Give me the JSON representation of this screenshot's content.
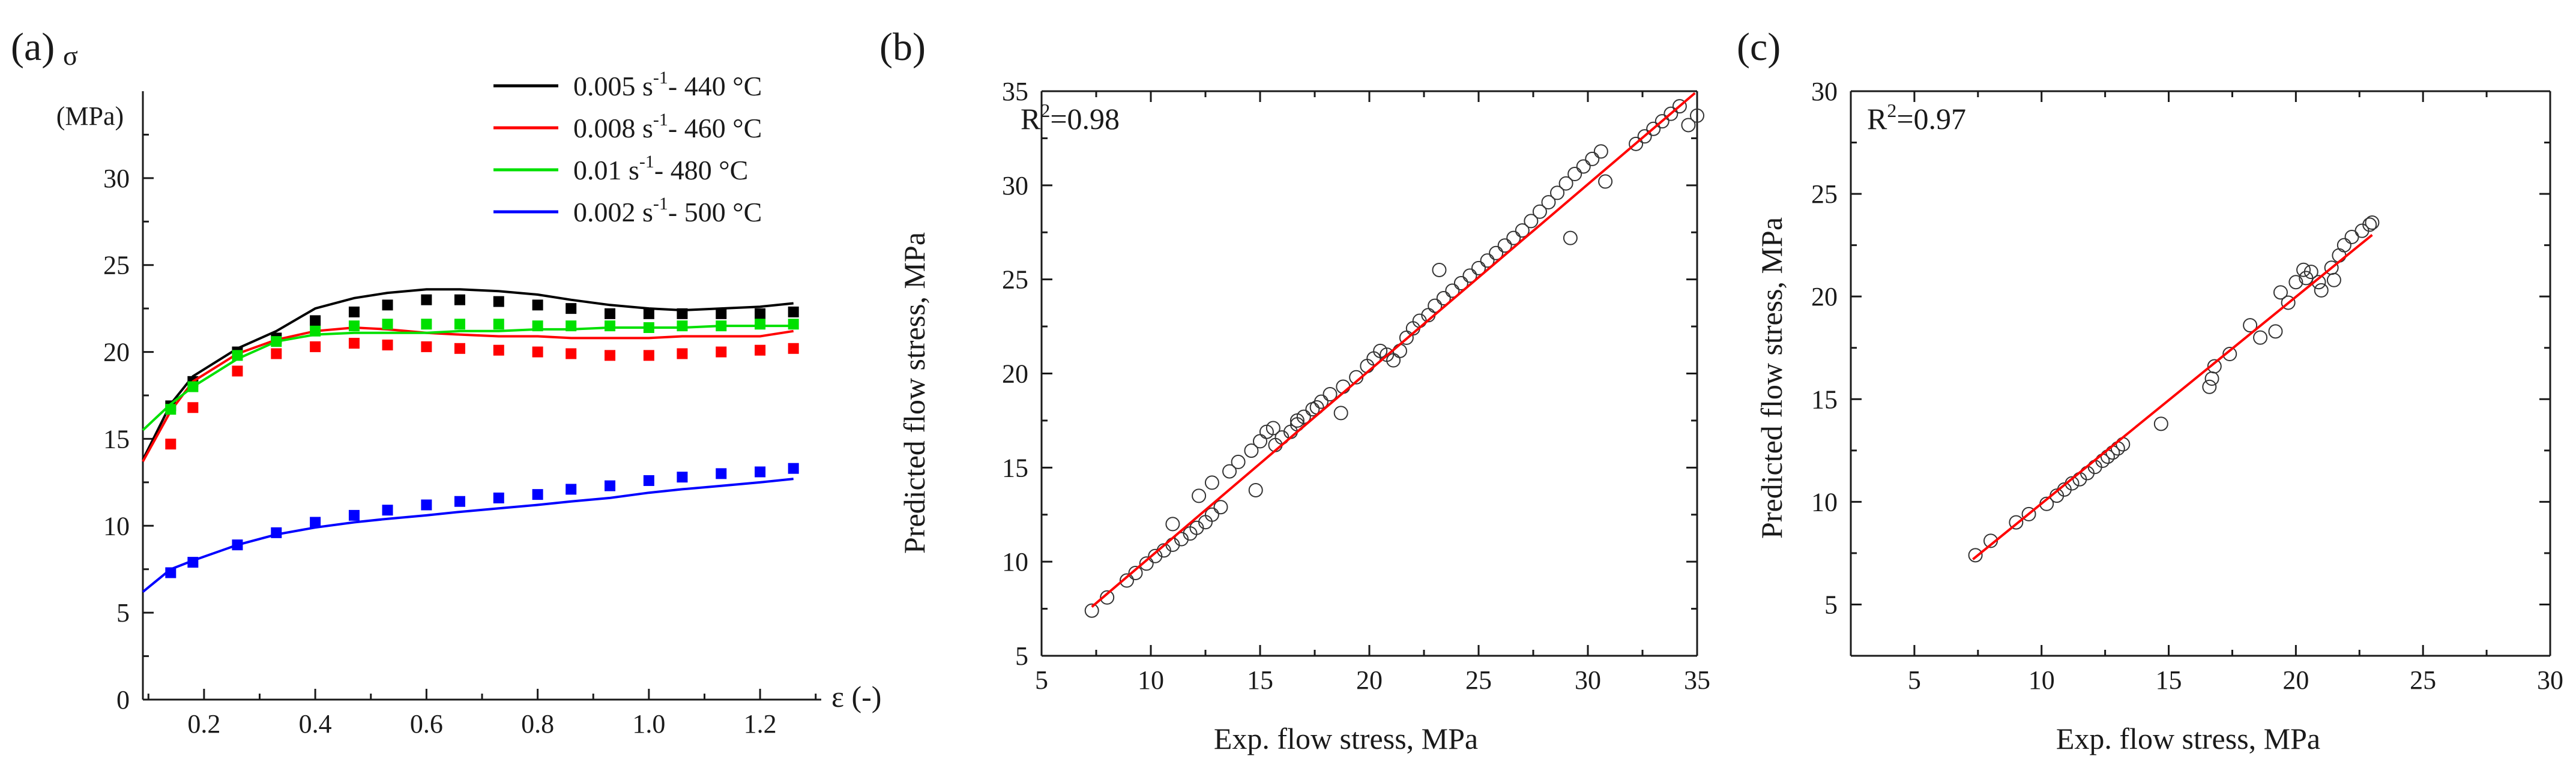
{
  "chart_data": [
    {
      "panel": "(a)",
      "type": "line",
      "title": "",
      "ylabel_symbol": "σ",
      "ylabel_unit": "(MPa)",
      "xlabel": "ε (-)",
      "xlim": [
        0.09,
        1.31
      ],
      "ylim": [
        0,
        35
      ],
      "xticks": [
        "0.2",
        "0.4",
        "0.6",
        "0.8",
        "1.0",
        "1.2"
      ],
      "xtick_values": [
        0.2,
        0.4,
        0.6,
        0.8,
        1.0,
        1.2
      ],
      "yticks": [
        "0",
        "5",
        "10",
        "15",
        "20",
        "25",
        "30"
      ],
      "ytick_values": [
        0,
        5,
        10,
        15,
        20,
        25,
        30
      ],
      "legend_location": "top-right",
      "series": [
        {
          "name": "0.005 s-1- 440 °C",
          "legend_parts": [
            "0.005 s",
            "-1",
            "- 440 °C"
          ],
          "color": "#000000",
          "predicted": {
            "x": [
              0.09,
              0.14,
              0.18,
              0.26,
              0.33,
              0.4,
              0.47,
              0.53,
              0.6,
              0.66,
              0.73,
              0.8,
              0.86,
              0.93,
              1.0,
              1.06,
              1.13,
              1.2,
              1.26
            ],
            "y": [
              13.8,
              17.0,
              18.6,
              20.2,
              21.2,
              22.5,
              23.1,
              23.4,
              23.6,
              23.6,
              23.5,
              23.3,
              23.0,
              22.7,
              22.5,
              22.4,
              22.5,
              22.6,
              22.8
            ]
          },
          "measured": {
            "x": [
              0.14,
              0.18,
              0.26,
              0.33,
              0.4,
              0.47,
              0.53,
              0.6,
              0.66,
              0.73,
              0.8,
              0.86,
              0.93,
              1.0,
              1.06,
              1.13,
              1.2,
              1.26
            ],
            "y": [
              16.9,
              18.3,
              20.0,
              20.8,
              21.8,
              22.3,
              22.7,
              23.0,
              23.0,
              22.9,
              22.7,
              22.5,
              22.2,
              22.2,
              22.2,
              22.2,
              22.2,
              22.3
            ]
          }
        },
        {
          "name": "0.008 s-1- 460 °C",
          "legend_parts": [
            "0.008 s",
            "-1",
            "- 460 °C"
          ],
          "color": "#ff0000",
          "predicted": {
            "x": [
              0.09,
              0.14,
              0.18,
              0.26,
              0.33,
              0.4,
              0.47,
              0.53,
              0.6,
              0.66,
              0.73,
              0.8,
              0.86,
              0.93,
              1.0,
              1.06,
              1.13,
              1.2,
              1.26
            ],
            "y": [
              13.7,
              16.6,
              18.3,
              19.9,
              20.7,
              21.2,
              21.4,
              21.3,
              21.1,
              21.0,
              20.9,
              20.9,
              20.8,
              20.8,
              20.8,
              20.9,
              20.9,
              20.9,
              21.2
            ]
          },
          "measured": {
            "x": [
              0.14,
              0.18,
              0.26,
              0.33,
              0.4,
              0.47,
              0.53,
              0.6,
              0.66,
              0.73,
              0.8,
              0.86,
              0.93,
              1.0,
              1.06,
              1.13,
              1.2,
              1.26
            ],
            "y": [
              14.7,
              16.8,
              18.9,
              19.9,
              20.3,
              20.5,
              20.4,
              20.3,
              20.2,
              20.1,
              20.0,
              19.9,
              19.8,
              19.8,
              19.9,
              20.0,
              20.1,
              20.2
            ]
          }
        },
        {
          "name": "0.01 s-1- 480 °C",
          "legend_parts": [
            "0.01 s",
            "-1",
            "- 480 °C"
          ],
          "color": "#00e000",
          "predicted": {
            "x": [
              0.09,
              0.14,
              0.18,
              0.26,
              0.33,
              0.4,
              0.47,
              0.53,
              0.6,
              0.66,
              0.73,
              0.8,
              0.86,
              0.93,
              1.0,
              1.06,
              1.13,
              1.2,
              1.26
            ],
            "y": [
              15.5,
              17.0,
              18.0,
              19.6,
              20.6,
              21.0,
              21.1,
              21.1,
              21.1,
              21.2,
              21.2,
              21.3,
              21.3,
              21.4,
              21.4,
              21.4,
              21.5,
              21.5,
              21.5
            ]
          },
          "measured": {
            "x": [
              0.14,
              0.18,
              0.26,
              0.33,
              0.4,
              0.47,
              0.53,
              0.6,
              0.66,
              0.73,
              0.8,
              0.86,
              0.93,
              1.0,
              1.06,
              1.13,
              1.2,
              1.26
            ],
            "y": [
              16.7,
              18.0,
              19.8,
              20.6,
              21.2,
              21.5,
              21.6,
              21.6,
              21.6,
              21.6,
              21.5,
              21.5,
              21.5,
              21.4,
              21.5,
              21.5,
              21.6,
              21.6
            ]
          }
        },
        {
          "name": "0.002 s-1- 500 °C",
          "legend_parts": [
            "0.002 s",
            "-1",
            "- 500 °C"
          ],
          "color": "#0000ff",
          "predicted": {
            "x": [
              0.09,
              0.14,
              0.18,
              0.26,
              0.33,
              0.4,
              0.47,
              0.53,
              0.6,
              0.66,
              0.73,
              0.8,
              0.86,
              0.93,
              1.0,
              1.06,
              1.13,
              1.2,
              1.26
            ],
            "y": [
              6.2,
              7.5,
              8.0,
              8.9,
              9.5,
              9.9,
              10.2,
              10.4,
              10.6,
              10.8,
              11.0,
              11.2,
              11.4,
              11.6,
              11.9,
              12.1,
              12.3,
              12.5,
              12.7
            ]
          },
          "measured": {
            "x": [
              0.14,
              0.18,
              0.26,
              0.33,
              0.4,
              0.47,
              0.53,
              0.6,
              0.66,
              0.73,
              0.8,
              0.86,
              0.93,
              1.0,
              1.06,
              1.13,
              1.2,
              1.26
            ],
            "y": [
              7.3,
              7.9,
              8.9,
              9.6,
              10.2,
              10.6,
              10.9,
              11.2,
              11.4,
              11.6,
              11.8,
              12.1,
              12.3,
              12.6,
              12.8,
              13.0,
              13.1,
              13.3
            ]
          }
        }
      ]
    },
    {
      "panel": "(b)",
      "type": "scatter",
      "title": "",
      "xlabel": "Exp. flow stress, MPa",
      "ylabel": "Predicted flow stress, MPa",
      "xlim": [
        5,
        35
      ],
      "ylim": [
        5,
        35
      ],
      "xticks": [
        "5",
        "10",
        "15",
        "20",
        "25",
        "30",
        "35"
      ],
      "xtick_values": [
        5,
        10,
        15,
        20,
        25,
        30,
        35
      ],
      "yticks": [
        "5",
        "10",
        "15",
        "20",
        "25",
        "30",
        "35"
      ],
      "ytick_values": [
        5,
        10,
        15,
        20,
        25,
        30,
        35
      ],
      "annotation": {
        "prefix": "R",
        "sup": "2",
        "suffix": "=0.98"
      },
      "fit_line": {
        "color": "#ff0000",
        "x": [
          7.3,
          34.9
        ],
        "y": [
          7.6,
          34.9
        ]
      },
      "points": {
        "x": [
          7.3,
          8.0,
          8.9,
          9.3,
          9.8,
          10.2,
          10.6,
          11.0,
          11.4,
          11.8,
          12.1,
          12.5,
          12.8,
          13.2,
          11.0,
          12.2,
          12.8,
          13.6,
          14.0,
          14.6,
          15.0,
          15.3,
          15.6,
          16.0,
          16.4,
          16.7,
          17.0,
          17.4,
          17.8,
          18.2,
          18.8,
          19.4,
          19.9,
          20.2,
          20.5,
          20.8,
          21.1,
          21.4,
          21.7,
          22.0,
          22.3,
          22.7,
          23.0,
          23.4,
          23.8,
          24.2,
          24.6,
          25.0,
          25.4,
          25.8,
          26.2,
          26.6,
          27.0,
          27.4,
          27.8,
          28.2,
          28.6,
          29.0,
          29.4,
          29.8,
          30.2,
          30.6,
          29.2,
          30.8,
          32.2,
          32.6,
          33.0,
          33.4,
          33.8,
          34.2,
          34.6,
          35.0,
          14.8,
          15.7,
          16.7,
          17.6,
          18.7,
          23.2
        ],
        "y": [
          7.4,
          8.1,
          9.0,
          9.4,
          9.9,
          10.3,
          10.6,
          10.9,
          11.2,
          11.5,
          11.8,
          12.1,
          12.5,
          12.9,
          12.0,
          13.5,
          14.2,
          14.8,
          15.3,
          15.9,
          16.4,
          16.9,
          17.1,
          16.6,
          16.9,
          17.3,
          17.7,
          18.1,
          18.5,
          18.9,
          19.3,
          19.8,
          20.4,
          20.8,
          21.2,
          21.0,
          20.7,
          21.2,
          21.9,
          22.4,
          22.8,
          23.1,
          23.6,
          24.0,
          24.4,
          24.8,
          25.2,
          25.6,
          26.0,
          26.4,
          26.8,
          27.2,
          27.6,
          28.1,
          28.6,
          29.1,
          29.6,
          30.1,
          30.6,
          31.0,
          31.4,
          31.8,
          27.2,
          30.2,
          32.2,
          32.6,
          33.0,
          33.4,
          33.8,
          34.2,
          33.2,
          33.7,
          13.8,
          16.2,
          17.5,
          18.2,
          17.9,
          25.5
        ]
      }
    },
    {
      "panel": "(c)",
      "type": "scatter",
      "title": "",
      "xlabel": "Exp. flow stress, MPa",
      "ylabel": "Predicted flow stress, MPa",
      "xlim": [
        2.5,
        30
      ],
      "ylim": [
        2.5,
        30
      ],
      "xticks": [
        "5",
        "10",
        "15",
        "20",
        "25",
        "30"
      ],
      "xtick_values": [
        5,
        10,
        15,
        20,
        25,
        30
      ],
      "yticks": [
        "5",
        "10",
        "15",
        "20",
        "25",
        "30"
      ],
      "ytick_values": [
        5,
        10,
        15,
        20,
        25,
        30
      ],
      "annotation": {
        "prefix": "R",
        "sup": "2",
        "suffix": "=0.97"
      },
      "fit_line": {
        "color": "#ff0000",
        "x": [
          7.3,
          23.0
        ],
        "y": [
          7.2,
          23.0
        ]
      },
      "points": {
        "x": [
          7.4,
          8.0,
          9.0,
          9.5,
          10.2,
          10.6,
          10.9,
          11.2,
          11.5,
          11.8,
          12.1,
          12.4,
          12.6,
          12.8,
          13.0,
          13.2,
          14.7,
          16.6,
          16.8,
          17.4,
          18.2,
          18.6,
          19.2,
          19.7,
          20.0,
          20.3,
          20.6,
          20.9,
          20.4,
          21.0,
          21.4,
          21.7,
          21.9,
          22.2,
          22.6,
          22.9,
          23.0,
          16.7,
          19.4,
          21.5
        ],
        "y": [
          7.4,
          8.1,
          9.0,
          9.4,
          9.9,
          10.3,
          10.6,
          10.9,
          11.1,
          11.4,
          11.7,
          12.0,
          12.2,
          12.4,
          12.6,
          12.8,
          13.8,
          15.6,
          16.6,
          17.2,
          18.6,
          18.0,
          18.3,
          19.7,
          20.7,
          21.3,
          21.2,
          20.7,
          20.9,
          20.3,
          21.4,
          22.0,
          22.5,
          22.9,
          23.2,
          23.5,
          23.6,
          16.0,
          20.2,
          20.8
        ]
      }
    }
  ]
}
